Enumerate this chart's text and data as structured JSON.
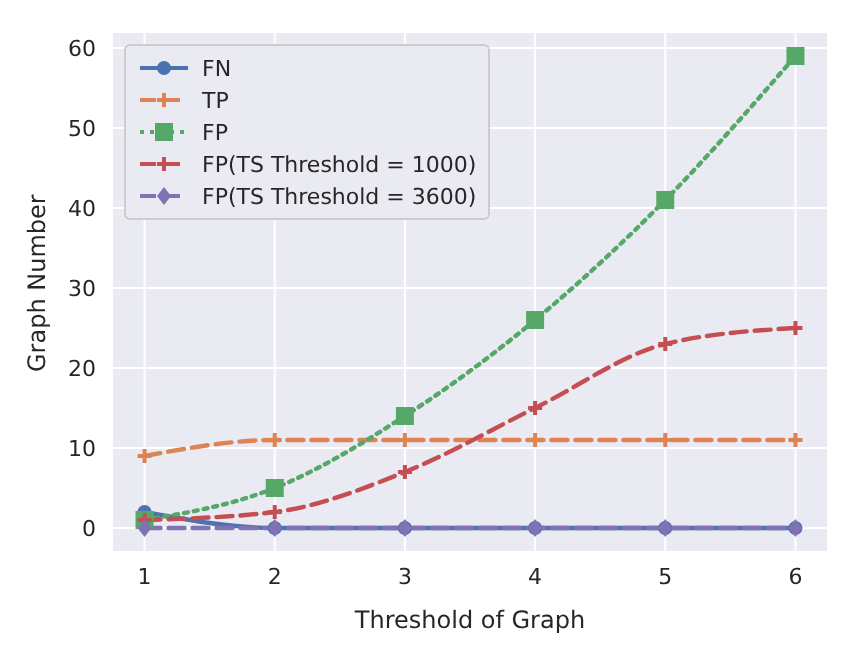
{
  "chart_data": {
    "type": "line",
    "xlabel": "Threshold of Graph",
    "ylabel": "Graph Number",
    "x": [
      1,
      2,
      3,
      4,
      5,
      6
    ],
    "xlim": [
      0.75,
      6.25
    ],
    "xticks": [
      1,
      2,
      3,
      4,
      5,
      6
    ],
    "ylim": [
      -3,
      62
    ],
    "yticks": [
      0,
      10,
      20,
      30,
      40,
      50,
      60
    ],
    "grid": true,
    "legend": "top left",
    "series": [
      {
        "name": "FN",
        "color": "#4c72b0",
        "values": [
          2,
          0,
          0,
          0,
          0,
          0
        ],
        "marker": "circle",
        "line_style": "solid"
      },
      {
        "name": "TP",
        "color": "#dd8452",
        "values": [
          9,
          11,
          11,
          11,
          11,
          11
        ],
        "marker": "cross",
        "line_style": "dashed"
      },
      {
        "name": "FP",
        "color": "#55a868",
        "values": [
          1,
          5,
          14,
          26,
          41,
          59
        ],
        "marker": "square",
        "line_style": "dotted"
      },
      {
        "name": "FP(TS Threshold = 1000)",
        "color": "#c44e52",
        "values": [
          1,
          2,
          7,
          15,
          23,
          25
        ],
        "marker": "cross",
        "line_style": "dashed"
      },
      {
        "name": "FP(TS Threshold = 3600)",
        "color": "#8172b3",
        "values": [
          0,
          0,
          0,
          0,
          0,
          0
        ],
        "marker": "diamond",
        "line_style": "dashed"
      }
    ]
  }
}
